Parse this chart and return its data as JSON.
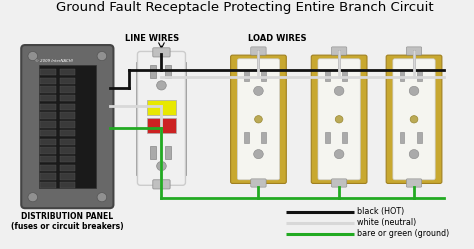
{
  "title": "Ground Fault Receptacle Protecting Entire Branch Circuit",
  "title_fontsize": 9.5,
  "bg_color": "#f0f0f0",
  "panel_color": "#707070",
  "panel_label": "DISTRIBUTION PANEL\n(fuses or circuit breakers)",
  "line_wires_label": "LINE WIRES",
  "load_wires_label": "LOAD WIRES",
  "black_wire_color": "#111111",
  "white_wire_color": "#d8d8d8",
  "green_wire_color": "#22aa22",
  "legend_labels": [
    "black (HOT)",
    "white (neutral)",
    "bare or green (ground)"
  ],
  "legend_colors": [
    "#111111",
    "#d8d8d8",
    "#22aa22"
  ],
  "outlet_color": "#c8a830",
  "outlet_face_color": "#f0f0f0",
  "gfci_color": "#f0f0f0"
}
